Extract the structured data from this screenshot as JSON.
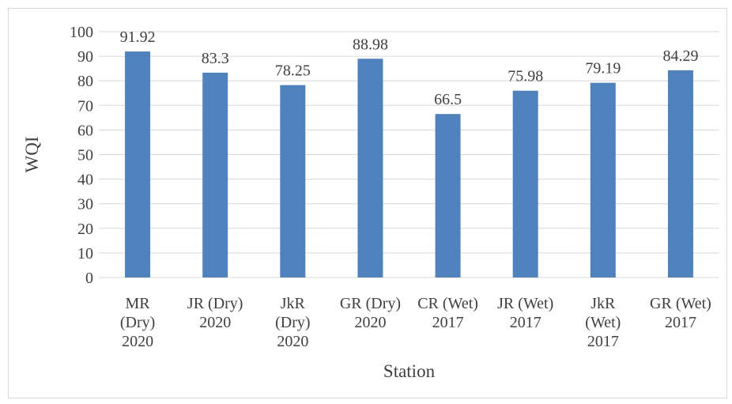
{
  "chart_data": {
    "type": "bar",
    "categories": [
      [
        "MR",
        "(Dry)",
        "2020"
      ],
      [
        "JR (Dry)",
        "2020"
      ],
      [
        "JkR",
        "(Dry)",
        "2020"
      ],
      [
        "GR (Dry)",
        "2020"
      ],
      [
        "CR (Wet)",
        "2017"
      ],
      [
        "JR (Wet)",
        "2017"
      ],
      [
        "JkR",
        "(Wet)",
        "2017"
      ],
      [
        "GR (Wet)",
        "2017"
      ]
    ],
    "values": [
      91.92,
      83.3,
      78.25,
      88.98,
      66.5,
      75.98,
      79.19,
      84.29
    ],
    "value_labels": [
      "91.92",
      "83.3",
      "78.25",
      "88.98",
      "66.5",
      "75.98",
      "79.19",
      "84.29"
    ],
    "xlabel": "Station",
    "ylabel": "WQI",
    "ylim": [
      0,
      100
    ],
    "yticks": [
      0,
      10,
      20,
      30,
      40,
      50,
      60,
      70,
      80,
      90,
      100
    ],
    "grid": true,
    "legend": "none",
    "bar_color": "#4f81bd",
    "grid_color": "#d9d9d9",
    "text_color": "#404040"
  }
}
